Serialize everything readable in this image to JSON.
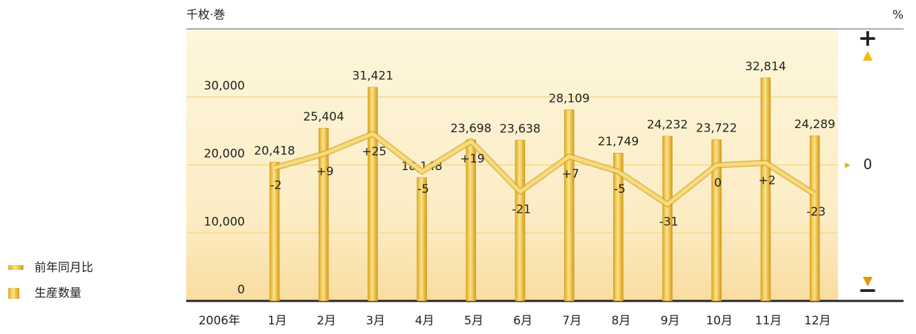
{
  "chart_data": {
    "type": "bar_line",
    "y_label": "千枚·巻",
    "y2_label": "%",
    "year_label": "2006年",
    "categories": [
      "1月",
      "2月",
      "3月",
      "4月",
      "5月",
      "6月",
      "7月",
      "8月",
      "9月",
      "10月",
      "11月",
      "12月"
    ],
    "series": [
      {
        "name": "生産数量",
        "type": "bar",
        "color": "#f2c94c",
        "values": [
          20418,
          25404,
          31421,
          18148,
          23698,
          23638,
          28109,
          21749,
          24232,
          23722,
          32814,
          24289
        ],
        "value_labels": [
          "20,418",
          "25,404",
          "31,421",
          "18,148",
          "23,698",
          "23,638",
          "28,109",
          "21,749",
          "24,232",
          "23,722",
          "32,814",
          "24,289"
        ]
      },
      {
        "name": "前年同月比",
        "type": "line",
        "axis": "y2",
        "color": "#f7dc7a",
        "values": [
          -2,
          9,
          25,
          -5,
          19,
          -21,
          7,
          -5,
          -31,
          0,
          2,
          -23
        ],
        "value_labels": [
          "-2",
          "+9",
          "+25",
          "-5",
          "+19",
          "-21",
          "+7",
          "-5",
          "-31",
          "0",
          "+2",
          "-23"
        ]
      }
    ],
    "ylim": [
      0,
      40000
    ],
    "yticks": [
      0,
      {
        "value": 10000,
        "label": "10,000"
      },
      {
        "value": 20000,
        "label": "20,000"
      },
      {
        "value": 30000,
        "label": "30,000"
      }
    ],
    "y2lim": [
      -100,
      100
    ],
    "y2ticks": [
      {
        "value": 100,
        "label": "+"
      },
      0,
      {
        "value": -100,
        "label": "−"
      }
    ],
    "grid": true
  }
}
